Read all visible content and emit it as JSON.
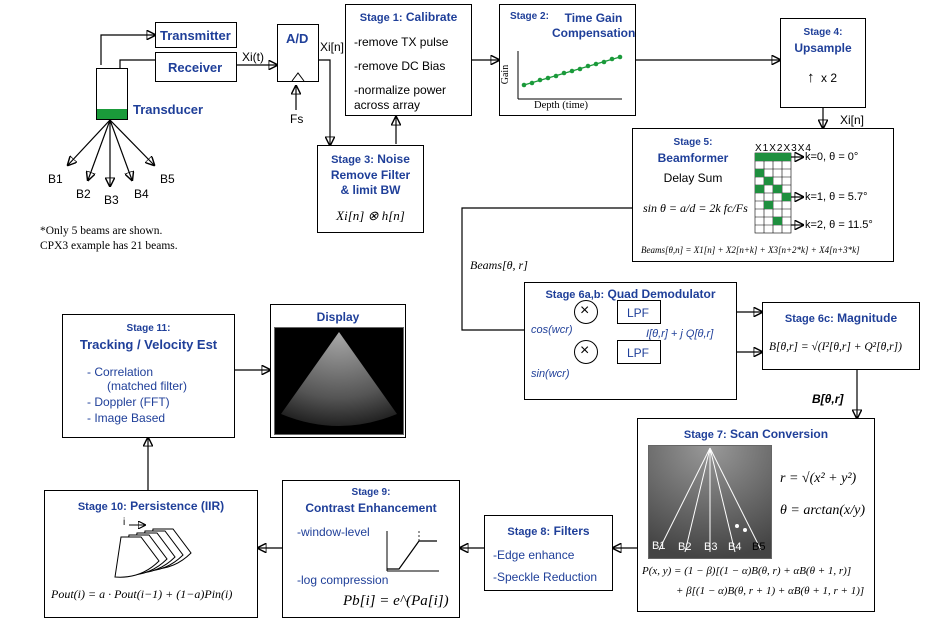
{
  "transmitter": "Transmitter",
  "receiver": "Receiver",
  "transducer": "Transducer",
  "signal_xi_t": "Xi(t)",
  "ad": "A/D",
  "fs": "Fs",
  "signal_xi_n": "Xi[n]",
  "beams": [
    "B1",
    "B2",
    "B3",
    "B4",
    "B5"
  ],
  "beam_note": [
    "*Only 5 beams are shown.",
    "CPX3 example has 21 beams."
  ],
  "stage1": {
    "label": "Stage 1:",
    "name": "Calibrate",
    "items": [
      "-remove TX pulse",
      "-remove DC Bias",
      "-normalize power",
      "across array"
    ]
  },
  "stage2": {
    "label": "Stage 2:",
    "name": "Time Gain Compensation",
    "ylabel": "Gain",
    "xlabel": "Depth (time)"
  },
  "stage3": {
    "label": "Stage 3:",
    "name_lines": [
      "Noise",
      "Remove Filter",
      "& limit BW"
    ],
    "formula": "Xi[n] ⊗ h[n]"
  },
  "stage4": {
    "label": "Stage 4:",
    "name": "Upsample",
    "factor": "x 2"
  },
  "stage5": {
    "label": "Stage 5:",
    "name": "Beamformer",
    "sub": "Delay Sum",
    "formula": "sin θ = a/d = 2k fc/Fs",
    "sum": "Beams[θ,n] = X1[n] + X2[n+k] + X3[n+2*k] + X4[n+3*k]",
    "k_labels": [
      "k=0, θ = 0°",
      "k=1, θ = 5.7°",
      "k=2, θ = 11.5°"
    ],
    "grid_header": "X1X2X3X4"
  },
  "beams_signal": "Beams[θ, r]",
  "stage6ab": {
    "label": "Stage 6a,b:",
    "name": "Quad Demodulator",
    "lpf": "LPF",
    "cos": "cos(wcr)",
    "sin": "sin(wcr)",
    "iq": "I[θ,r] + j Q[θ,r]"
  },
  "stage6c": {
    "label": "Stage 6c:",
    "name": "Magnitude",
    "formula": "B[θ,r] = √(I²[θ,r] + Q²[θ,r])"
  },
  "b_signal": "B[θ,r]",
  "stage7": {
    "label": "Stage 7:",
    "name": "Scan Conversion",
    "r_formula": "r = √(x² + y²)",
    "theta_formula": "θ = arctan(x/y)",
    "p_line1": "P(x, y) = (1 − β)[(1 − α)B(θ, r) + αB(θ + 1, r)]",
    "p_line2": "+ β[(1 − α)B(θ, r + 1) + αB(θ + 1, r + 1)]"
  },
  "stage8": {
    "label": "Stage 8:",
    "name": "Filters",
    "items": [
      "-Edge enhance",
      "-Speckle Reduction"
    ]
  },
  "stage9": {
    "label": "Stage 9:",
    "name": "Contrast Enhancement",
    "items": [
      "-window-level",
      "-log compression"
    ],
    "formula": "Pb[i] = e^(Pa[i])"
  },
  "stage10": {
    "label": "Stage 10:",
    "name": "Persistence (IIR)",
    "i": "i",
    "formula": "Pout(i) = a · Pout(i−1) + (1−a)Pin(i)"
  },
  "stage11": {
    "label": "Stage 11:",
    "name": "Tracking / Velocity Est",
    "items": [
      "- Correlation",
      "(matched filter)",
      "- Doppler (FFT)",
      "- Image Based"
    ]
  },
  "display": "Display",
  "colors": {
    "title_blue": "#1f3f99",
    "green": "#1a9a3a",
    "grid_green": "#1f8f3f"
  }
}
